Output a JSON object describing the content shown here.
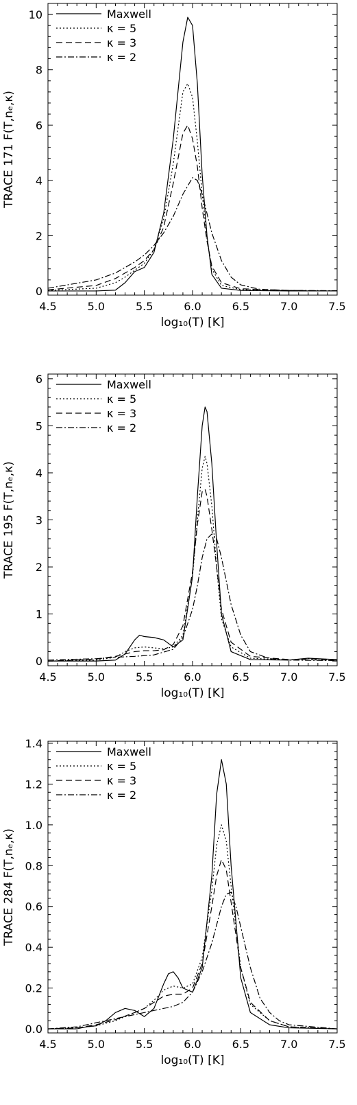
{
  "chart_data": [
    {
      "type": "line",
      "ylabel": "TRACE 171 F(T,nₑ,κ)",
      "xlabel": "log₁₀(T)  [K]",
      "xlim": [
        4.5,
        7.5
      ],
      "ylim": [
        -0.15,
        10.4
      ],
      "xticks": [
        "4.5",
        "5.0",
        "5.5",
        "6.0",
        "6.5",
        "7.0",
        "7.5"
      ],
      "yticks": [
        "0",
        "2",
        "4",
        "6",
        "8",
        "10"
      ],
      "ytick_values": [
        0,
        2,
        4,
        6,
        8,
        10
      ],
      "legend_position": "top-left",
      "series": [
        {
          "name": "Maxwell",
          "dash": "",
          "x": [
            4.5,
            5.0,
            5.2,
            5.3,
            5.4,
            5.5,
            5.6,
            5.7,
            5.8,
            5.9,
            5.95,
            6.0,
            6.05,
            6.1,
            6.15,
            6.2,
            6.3,
            6.5,
            7.0,
            7.5
          ],
          "y": [
            0,
            0,
            0.03,
            0.3,
            0.7,
            0.85,
            1.4,
            2.8,
            5.5,
            9.0,
            9.9,
            9.6,
            7.5,
            4.2,
            2.0,
            0.6,
            0.1,
            0.02,
            0,
            0
          ]
        },
        {
          "name": "κ = 5",
          "dash": "2,3",
          "x": [
            4.5,
            5.0,
            5.2,
            5.3,
            5.4,
            5.5,
            5.6,
            5.7,
            5.8,
            5.9,
            5.95,
            6.0,
            6.05,
            6.1,
            6.15,
            6.2,
            6.3,
            6.5,
            7.0,
            7.5
          ],
          "y": [
            0.02,
            0.1,
            0.3,
            0.5,
            0.75,
            1.0,
            1.5,
            2.6,
            4.6,
            7.2,
            7.5,
            7.0,
            5.4,
            3.5,
            1.9,
            0.8,
            0.2,
            0.05,
            0.01,
            0
          ]
        },
        {
          "name": "κ = 3",
          "dash": "9,5",
          "x": [
            4.5,
            5.0,
            5.2,
            5.3,
            5.4,
            5.5,
            5.6,
            5.7,
            5.8,
            5.9,
            5.95,
            6.0,
            6.05,
            6.1,
            6.15,
            6.2,
            6.3,
            6.5,
            7.0,
            7.5
          ],
          "y": [
            0.04,
            0.2,
            0.45,
            0.65,
            0.85,
            1.1,
            1.5,
            2.3,
            3.9,
            5.7,
            6.0,
            5.5,
            4.5,
            3.0,
            1.8,
            0.9,
            0.3,
            0.08,
            0.02,
            0
          ]
        },
        {
          "name": "κ = 2",
          "dash": "9,3,2,3",
          "x": [
            4.5,
            5.0,
            5.2,
            5.3,
            5.4,
            5.5,
            5.6,
            5.7,
            5.8,
            5.9,
            6.0,
            6.05,
            6.1,
            6.15,
            6.2,
            6.3,
            6.4,
            6.5,
            6.7,
            7.0,
            7.5
          ],
          "y": [
            0.1,
            0.4,
            0.65,
            0.85,
            1.05,
            1.3,
            1.65,
            2.1,
            2.7,
            3.5,
            4.1,
            4.0,
            3.5,
            2.8,
            2.1,
            1.1,
            0.5,
            0.22,
            0.06,
            0.02,
            0.01
          ]
        }
      ]
    },
    {
      "type": "line",
      "ylabel": "TRACE 195 F(T,nₑ,κ)",
      "xlabel": "log₁₀(T)  [K]",
      "xlim": [
        4.5,
        7.5
      ],
      "ylim": [
        -0.1,
        6.1
      ],
      "xticks": [
        "4.5",
        "5.0",
        "5.5",
        "6.0",
        "6.5",
        "7.0",
        "7.5"
      ],
      "yticks": [
        "0",
        "1",
        "2",
        "3",
        "4",
        "5",
        "6"
      ],
      "ytick_values": [
        0,
        1,
        2,
        3,
        4,
        5,
        6
      ],
      "legend_position": "top-left",
      "series": [
        {
          "name": "Maxwell",
          "dash": "",
          "x": [
            4.5,
            5.0,
            5.2,
            5.3,
            5.4,
            5.45,
            5.5,
            5.6,
            5.7,
            5.8,
            5.9,
            6.0,
            6.05,
            6.1,
            6.13,
            6.15,
            6.2,
            6.25,
            6.3,
            6.4,
            6.6,
            7.0,
            7.2,
            7.3,
            7.5
          ],
          "y": [
            0,
            0,
            0.02,
            0.15,
            0.45,
            0.55,
            0.52,
            0.5,
            0.45,
            0.3,
            0.45,
            1.8,
            3.5,
            5.0,
            5.4,
            5.3,
            4.2,
            2.5,
            1.0,
            0.2,
            0.03,
            0.02,
            0.06,
            0.05,
            0.03
          ]
        },
        {
          "name": "κ = 5",
          "dash": "2,3",
          "x": [
            4.5,
            5.0,
            5.2,
            5.3,
            5.4,
            5.5,
            5.6,
            5.7,
            5.8,
            5.9,
            6.0,
            6.05,
            6.1,
            6.13,
            6.15,
            6.2,
            6.25,
            6.3,
            6.4,
            6.6,
            7.0,
            7.2,
            7.5
          ],
          "y": [
            0,
            0.02,
            0.08,
            0.2,
            0.28,
            0.3,
            0.28,
            0.26,
            0.3,
            0.55,
            1.8,
            3.0,
            4.1,
            4.35,
            4.2,
            3.3,
            2.0,
            0.9,
            0.3,
            0.06,
            0.02,
            0.05,
            0.03
          ]
        },
        {
          "name": "κ = 3",
          "dash": "9,5",
          "x": [
            4.5,
            5.0,
            5.2,
            5.3,
            5.4,
            5.5,
            5.6,
            5.7,
            5.8,
            5.9,
            6.0,
            6.05,
            6.1,
            6.13,
            6.15,
            6.2,
            6.25,
            6.3,
            6.4,
            6.6,
            7.0,
            7.5
          ],
          "y": [
            0,
            0.04,
            0.1,
            0.15,
            0.2,
            0.22,
            0.22,
            0.24,
            0.35,
            0.75,
            1.9,
            2.9,
            3.6,
            3.65,
            3.5,
            2.8,
            2.0,
            1.1,
            0.4,
            0.1,
            0.03,
            0.02
          ]
        },
        {
          "name": "κ = 2",
          "dash": "9,3,2,3",
          "x": [
            4.5,
            5.0,
            5.2,
            5.4,
            5.6,
            5.8,
            5.9,
            6.0,
            6.05,
            6.1,
            6.15,
            6.2,
            6.25,
            6.3,
            6.4,
            6.5,
            6.6,
            6.8,
            7.0,
            7.5
          ],
          "y": [
            0.02,
            0.05,
            0.08,
            0.1,
            0.13,
            0.25,
            0.5,
            1.1,
            1.6,
            2.2,
            2.6,
            2.7,
            2.6,
            2.2,
            1.2,
            0.55,
            0.2,
            0.05,
            0.02,
            0.01
          ]
        }
      ]
    },
    {
      "type": "line",
      "ylabel": "TRACE 284 F(T,nₑ,κ)",
      "xlabel": "log₁₀(T)  [K]",
      "xlim": [
        4.5,
        7.5
      ],
      "ylim": [
        -0.02,
        1.41
      ],
      "xticks": [
        "4.5",
        "5.0",
        "5.5",
        "6.0",
        "6.5",
        "7.0",
        "7.5"
      ],
      "yticks": [
        "0.0",
        "0.2",
        "0.4",
        "0.6",
        "0.8",
        "1.0",
        "1.2",
        "1.4"
      ],
      "ytick_values": [
        0,
        0.2,
        0.4,
        0.6,
        0.8,
        1.0,
        1.2,
        1.4
      ],
      "legend_position": "top-left",
      "series": [
        {
          "name": "Maxwell",
          "dash": "",
          "x": [
            4.5,
            4.8,
            4.9,
            5.0,
            5.1,
            5.2,
            5.3,
            5.4,
            5.5,
            5.6,
            5.7,
            5.75,
            5.8,
            5.85,
            5.9,
            6.0,
            6.1,
            6.2,
            6.25,
            6.3,
            6.35,
            6.4,
            6.5,
            6.6,
            6.8,
            7.0,
            7.5
          ],
          "y": [
            0,
            0,
            0.01,
            0.015,
            0.04,
            0.08,
            0.1,
            0.09,
            0.06,
            0.1,
            0.22,
            0.27,
            0.28,
            0.25,
            0.2,
            0.18,
            0.3,
            0.75,
            1.15,
            1.32,
            1.2,
            0.8,
            0.25,
            0.08,
            0.02,
            0.005,
            0
          ]
        },
        {
          "name": "κ = 5",
          "dash": "2,3",
          "x": [
            4.5,
            4.8,
            5.0,
            5.2,
            5.4,
            5.5,
            5.6,
            5.7,
            5.8,
            5.9,
            6.0,
            6.1,
            6.2,
            6.25,
            6.3,
            6.35,
            6.4,
            6.5,
            6.6,
            6.8,
            7.0,
            7.5
          ],
          "y": [
            0,
            0.005,
            0.015,
            0.04,
            0.08,
            0.1,
            0.14,
            0.19,
            0.21,
            0.2,
            0.22,
            0.35,
            0.68,
            0.9,
            1.0,
            0.92,
            0.7,
            0.3,
            0.12,
            0.04,
            0.01,
            0
          ]
        },
        {
          "name": "κ = 3",
          "dash": "9,5",
          "x": [
            4.5,
            4.8,
            5.0,
            5.2,
            5.4,
            5.5,
            5.6,
            5.7,
            5.8,
            5.9,
            6.0,
            6.1,
            6.2,
            6.25,
            6.3,
            6.35,
            6.4,
            6.5,
            6.6,
            6.8,
            7.0,
            7.5
          ],
          "y": [
            0,
            0.005,
            0.02,
            0.045,
            0.08,
            0.1,
            0.13,
            0.16,
            0.17,
            0.17,
            0.2,
            0.32,
            0.6,
            0.75,
            0.83,
            0.78,
            0.62,
            0.3,
            0.13,
            0.04,
            0.01,
            0
          ]
        },
        {
          "name": "κ = 2",
          "dash": "9,3,2,3",
          "x": [
            4.5,
            4.8,
            5.0,
            5.2,
            5.4,
            5.5,
            5.6,
            5.7,
            5.8,
            5.9,
            6.0,
            6.1,
            6.2,
            6.3,
            6.35,
            6.4,
            6.45,
            6.5,
            6.6,
            6.7,
            6.8,
            6.9,
            7.0,
            7.5
          ],
          "y": [
            0,
            0.01,
            0.03,
            0.05,
            0.07,
            0.08,
            0.09,
            0.1,
            0.11,
            0.13,
            0.18,
            0.28,
            0.42,
            0.6,
            0.66,
            0.67,
            0.6,
            0.5,
            0.3,
            0.15,
            0.08,
            0.04,
            0.02,
            0
          ]
        }
      ]
    }
  ]
}
